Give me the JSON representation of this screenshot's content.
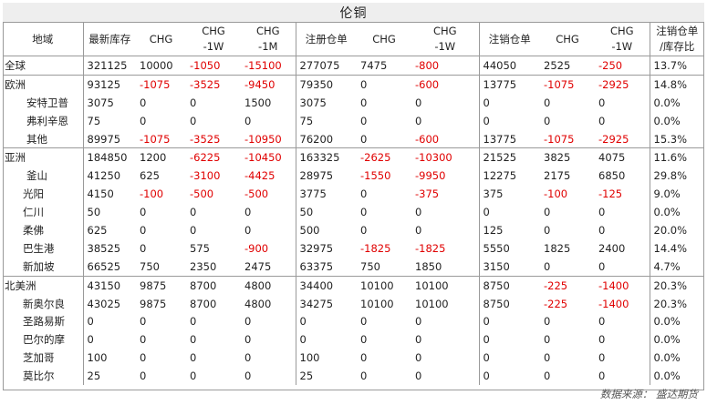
{
  "title": "伦铜",
  "headers": [
    "地域",
    "最新库存",
    "CHG",
    "CHG\n-1W",
    "CHG\n-1M",
    "注册仓单",
    "CHG",
    "CHG\n-1W",
    "注销仓单",
    "CHG",
    "CHG\n-1W",
    "注销仓单\n/库存比"
  ],
  "rows": [
    {
      "region": "全球",
      "level": 0,
      "values": [
        "321125",
        "10000",
        "-1050",
        "-15100",
        "277075",
        "7475",
        "-800",
        "44050",
        "2525",
        "-250",
        "13.7%"
      ]
    },
    {
      "region": "欧洲",
      "level": 0,
      "values": [
        "93125",
        "-1075",
        "-3525",
        "-9450",
        "79350",
        "0",
        "-600",
        "13775",
        "-1075",
        "-2925",
        "14.8%"
      ]
    },
    {
      "region": "安特卫普",
      "level": 1,
      "values": [
        "3075",
        "0",
        "0",
        "1500",
        "3075",
        "0",
        "0",
        "0",
        "0",
        "0",
        "0.0%"
      ]
    },
    {
      "region": "弗利辛恩",
      "level": 1,
      "values": [
        "75",
        "0",
        "0",
        "0",
        "75",
        "0",
        "0",
        "0",
        "0",
        "0",
        "0.0%"
      ]
    },
    {
      "region": "其他",
      "level": 1,
      "values": [
        "89975",
        "-1075",
        "-3525",
        "-10950",
        "76200",
        "0",
        "-600",
        "13775",
        "-1075",
        "-2925",
        "15.3%"
      ]
    },
    {
      "region": "亚洲",
      "level": 0,
      "values": [
        "184850",
        "1200",
        "-6225",
        "-10450",
        "163325",
        "-2625",
        "-10300",
        "21525",
        "3825",
        "4075",
        "11.6%"
      ]
    },
    {
      "region": "釜山",
      "level": 1,
      "values": [
        "41250",
        "625",
        "-3100",
        "-4425",
        "28975",
        "-1550",
        "-9950",
        "12275",
        "2175",
        "6850",
        "29.8%"
      ]
    },
    {
      "region": "光阳",
      "level": 2,
      "values": [
        "4150",
        "-100",
        "-500",
        "-500",
        "3775",
        "0",
        "-375",
        "375",
        "-100",
        "-125",
        "9.0%"
      ]
    },
    {
      "region": "仁川",
      "level": 2,
      "values": [
        "50",
        "0",
        "0",
        "0",
        "50",
        "0",
        "0",
        "0",
        "0",
        "0",
        "0.0%"
      ]
    },
    {
      "region": "柔佛",
      "level": 2,
      "values": [
        "625",
        "0",
        "0",
        "0",
        "500",
        "0",
        "0",
        "125",
        "0",
        "0",
        "20.0%"
      ]
    },
    {
      "region": "巴生港",
      "level": 2,
      "values": [
        "38525",
        "0",
        "575",
        "-900",
        "32975",
        "-1825",
        "-1825",
        "5550",
        "1825",
        "2400",
        "14.4%"
      ]
    },
    {
      "region": "新加坡",
      "level": 2,
      "values": [
        "66525",
        "750",
        "2350",
        "2475",
        "63375",
        "750",
        "1850",
        "3150",
        "0",
        "0",
        "4.7%"
      ]
    },
    {
      "region": "北美洲",
      "level": 0,
      "values": [
        "43150",
        "9875",
        "8700",
        "4800",
        "34400",
        "10100",
        "10100",
        "8750",
        "-225",
        "-1400",
        "20.3%"
      ]
    },
    {
      "region": "新奥尔良",
      "level": 2,
      "values": [
        "43025",
        "9875",
        "8700",
        "4800",
        "34275",
        "10100",
        "10100",
        "8750",
        "-225",
        "-1400",
        "20.3%"
      ]
    },
    {
      "region": "圣路易斯",
      "level": 2,
      "values": [
        "0",
        "0",
        "0",
        "0",
        "0",
        "0",
        "0",
        "0",
        "0",
        "0",
        "0.0%"
      ]
    },
    {
      "region": "巴尔的摩",
      "level": 2,
      "values": [
        "0",
        "0",
        "0",
        "0",
        "0",
        "0",
        "0",
        "0",
        "0",
        "0",
        "0.0%"
      ]
    },
    {
      "region": "芝加哥",
      "level": 2,
      "values": [
        "100",
        "0",
        "0",
        "0",
        "100",
        "0",
        "0",
        "0",
        "0",
        "0",
        "0.0%"
      ]
    },
    {
      "region": "莫比尔",
      "level": 2,
      "values": [
        "25",
        "0",
        "0",
        "0",
        "25",
        "0",
        "0",
        "0",
        "0",
        "0",
        "0.0%"
      ]
    }
  ],
  "source": "数据来源：  盛达期货",
  "colors": {
    "negative": "#e00000",
    "header_bg": "#eeeeee",
    "grid": "#9a9a9a"
  }
}
